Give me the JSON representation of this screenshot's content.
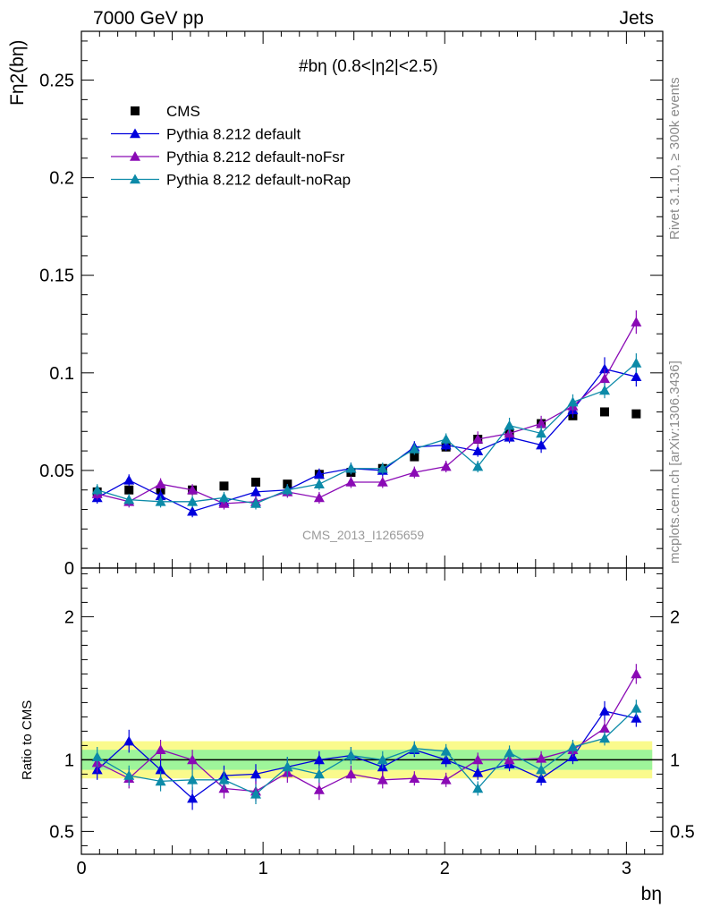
{
  "header": {
    "left": "7000 GeV pp",
    "right": "Jets"
  },
  "side_notes": {
    "rivet": "Rivet 3.1.10, ≥ 300k events",
    "mcplots": "mcplots.cern.ch [arXiv:1306.3436]"
  },
  "watermark": "CMS_2013_I1265659",
  "chart_data": [
    {
      "type": "scatter",
      "title": "#bη (0.8<|η2|<2.5)",
      "ylabel": "Fη2(bη)",
      "xlabel": "bη",
      "xlim": [
        0,
        3.2
      ],
      "ylim": [
        0,
        0.275
      ],
      "yticks": [
        0,
        0.05,
        0.1,
        0.15,
        0.2,
        0.25
      ],
      "ytick_labels": [
        "0",
        "0.05",
        "0.1",
        "0.15",
        "0.2",
        "0.25"
      ],
      "xticks": [
        0,
        1,
        2,
        3
      ],
      "xtick_labels": [
        "0",
        "1",
        "2",
        "3"
      ],
      "legend_position": "top-left",
      "x": [
        0.087,
        0.262,
        0.436,
        0.611,
        0.785,
        0.96,
        1.134,
        1.309,
        1.484,
        1.658,
        1.833,
        2.007,
        2.182,
        2.356,
        2.531,
        2.705,
        2.88,
        3.054
      ],
      "series": [
        {
          "name": "CMS",
          "marker": "square",
          "color": "#000000",
          "values": [
            0.039,
            0.04,
            0.04,
            0.04,
            0.042,
            0.044,
            0.043,
            0.048,
            0.049,
            0.051,
            0.057,
            0.062,
            0.066,
            0.069,
            0.074,
            0.078,
            0.08,
            0.079
          ],
          "errors": [
            0.001,
            0.001,
            0.001,
            0.001,
            0.001,
            0.001,
            0.001,
            0.001,
            0.001,
            0.001,
            0.001,
            0.001,
            0.001,
            0.0015,
            0.0015,
            0.002,
            0.001,
            0.001
          ]
        },
        {
          "name": "Pythia 8.212 default",
          "marker": "triangle",
          "color": "#0000dd",
          "values": [
            0.036,
            0.045,
            0.037,
            0.029,
            0.034,
            0.039,
            0.04,
            0.048,
            0.051,
            0.05,
            0.062,
            0.063,
            0.06,
            0.067,
            0.063,
            0.081,
            0.102,
            0.098
          ],
          "errors": [
            0.003,
            0.003,
            0.003,
            0.003,
            0.003,
            0.003,
            0.003,
            0.003,
            0.003,
            0.003,
            0.003,
            0.003,
            0.003,
            0.003,
            0.004,
            0.004,
            0.006,
            0.005
          ]
        },
        {
          "name": "Pythia 8.212 default-noFsr",
          "marker": "triangle",
          "color": "#8a0ab5",
          "values": [
            0.038,
            0.034,
            0.043,
            0.04,
            0.033,
            0.034,
            0.039,
            0.036,
            0.044,
            0.044,
            0.049,
            0.052,
            0.066,
            0.069,
            0.074,
            0.083,
            0.097,
            0.126
          ],
          "errors": [
            0.003,
            0.003,
            0.003,
            0.003,
            0.003,
            0.003,
            0.003,
            0.003,
            0.003,
            0.003,
            0.003,
            0.003,
            0.004,
            0.004,
            0.004,
            0.004,
            0.005,
            0.006
          ]
        },
        {
          "name": "Pythia 8.212 default-noRap",
          "marker": "triangle",
          "color": "#0c8aa8",
          "values": [
            0.04,
            0.035,
            0.034,
            0.034,
            0.036,
            0.033,
            0.04,
            0.043,
            0.051,
            0.051,
            0.061,
            0.066,
            0.052,
            0.073,
            0.069,
            0.085,
            0.091,
            0.105
          ],
          "errors": [
            0.003,
            0.003,
            0.003,
            0.003,
            0.003,
            0.003,
            0.003,
            0.003,
            0.003,
            0.003,
            0.003,
            0.003,
            0.003,
            0.004,
            0.004,
            0.004,
            0.004,
            0.005
          ]
        }
      ]
    },
    {
      "type": "scatter",
      "ylabel": "Ratio to CMS",
      "xlabel": "bη",
      "xlim": [
        0,
        3.2
      ],
      "ylim": [
        0.34,
        2.34
      ],
      "yticks": [
        0.5,
        1,
        2
      ],
      "ytick_labels": [
        "0.5",
        "1",
        "2"
      ],
      "xticks": [
        0,
        1,
        2,
        3
      ],
      "xtick_labels": [
        "0",
        "1",
        "2",
        "3"
      ],
      "reference_line": 1,
      "band_inner": [
        0.93,
        1.07
      ],
      "band_outer": [
        0.87,
        1.13
      ],
      "x": [
        0.087,
        0.262,
        0.436,
        0.611,
        0.785,
        0.96,
        1.134,
        1.309,
        1.484,
        1.658,
        1.833,
        2.007,
        2.182,
        2.356,
        2.531,
        2.705,
        2.88,
        3.054
      ],
      "series": [
        {
          "name": "Pythia 8.212 default",
          "color": "#0000dd",
          "values": [
            0.93,
            1.13,
            0.93,
            0.73,
            0.89,
            0.9,
            0.95,
            1.0,
            1.03,
            0.95,
            1.07,
            1.0,
            0.91,
            0.97,
            0.87,
            1.02,
            1.34,
            1.29
          ],
          "errors": [
            0.07,
            0.08,
            0.07,
            0.08,
            0.07,
            0.07,
            0.07,
            0.06,
            0.06,
            0.06,
            0.05,
            0.05,
            0.05,
            0.05,
            0.05,
            0.05,
            0.07,
            0.06
          ]
        },
        {
          "name": "Pythia 8.212 default-noFsr",
          "color": "#8a0ab5",
          "values": [
            0.98,
            0.87,
            1.07,
            1.0,
            0.8,
            0.78,
            0.91,
            0.79,
            0.9,
            0.86,
            0.87,
            0.86,
            1.0,
            1.0,
            1.01,
            1.07,
            1.22,
            1.6
          ],
          "errors": [
            0.07,
            0.07,
            0.07,
            0.07,
            0.07,
            0.07,
            0.07,
            0.07,
            0.06,
            0.06,
            0.05,
            0.05,
            0.05,
            0.05,
            0.05,
            0.05,
            0.06,
            0.07
          ]
        },
        {
          "name": "Pythia 8.212 default-noRap",
          "color": "#0c8aa8",
          "values": [
            1.02,
            0.89,
            0.85,
            0.86,
            0.86,
            0.76,
            0.95,
            0.9,
            1.03,
            1.0,
            1.08,
            1.06,
            0.8,
            1.05,
            0.93,
            1.09,
            1.15,
            1.36
          ],
          "errors": [
            0.07,
            0.07,
            0.07,
            0.07,
            0.07,
            0.07,
            0.07,
            0.06,
            0.06,
            0.06,
            0.05,
            0.05,
            0.05,
            0.05,
            0.05,
            0.05,
            0.05,
            0.06
          ]
        }
      ]
    }
  ]
}
